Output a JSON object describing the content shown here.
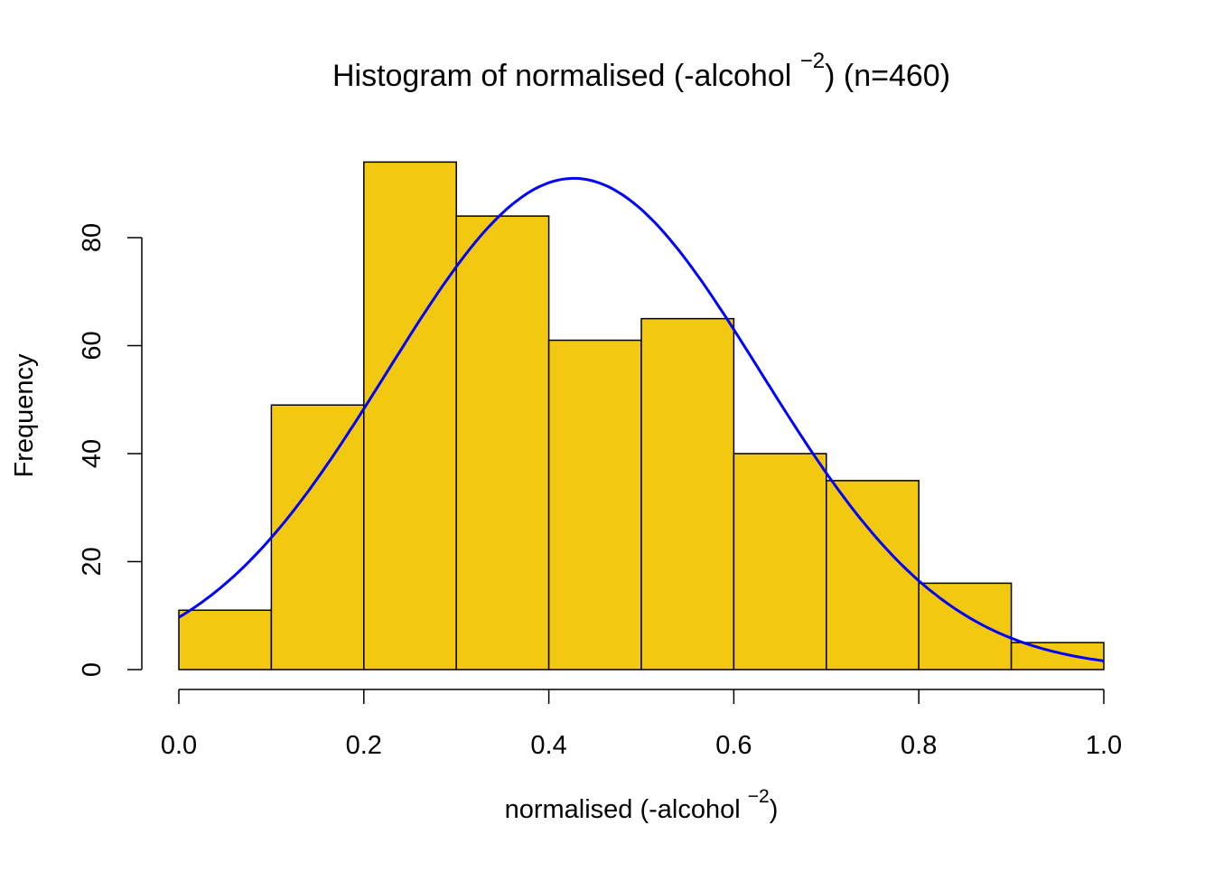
{
  "chart_data": {
    "type": "bar",
    "title": "Histogram of normalised (-alcohol ",
    "title_sup": "−2",
    "title_suffix": ") (n=460)",
    "xlabel": "normalised (-alcohol ",
    "xlabel_sup": "−2",
    "xlabel_suffix": ")",
    "ylabel": "Frequency",
    "bin_edges": [
      0.0,
      0.1,
      0.2,
      0.3,
      0.4,
      0.5,
      0.6,
      0.7,
      0.8,
      0.9,
      1.0
    ],
    "values": [
      11,
      49,
      94,
      84,
      61,
      65,
      40,
      35,
      16,
      5
    ],
    "xlim": [
      0,
      1
    ],
    "ylim": [
      0,
      80
    ],
    "x_ticks": [
      "0.0",
      "0.2",
      "0.4",
      "0.6",
      "0.8",
      "1.0"
    ],
    "y_ticks": [
      "0",
      "20",
      "40",
      "60",
      "80"
    ],
    "bar_color": "#F3C811",
    "curve": {
      "type": "normal-density",
      "mean": 0.427,
      "sd": 0.2017,
      "n": 460,
      "binwidth": 0.1,
      "color": "#0000FF"
    }
  }
}
